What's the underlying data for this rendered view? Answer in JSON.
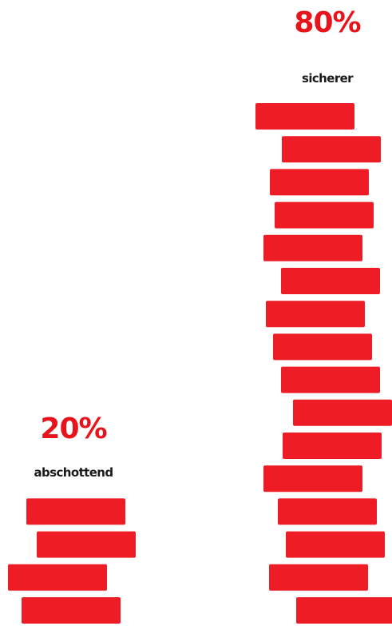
{
  "chart_data": {
    "type": "bar",
    "categories": [
      "abschottend",
      "sicherer"
    ],
    "values": [
      20,
      80
    ],
    "value_labels": [
      "20%",
      "80%"
    ],
    "unit": "%",
    "title": "",
    "xlabel": "",
    "ylabel": "",
    "style": "pictograph-stacked-bricks",
    "bar_color": "#ee1c25",
    "value_label_color": "#e8141c",
    "category_label_color": "#1a1a1a",
    "grid": false,
    "legend": "none"
  }
}
